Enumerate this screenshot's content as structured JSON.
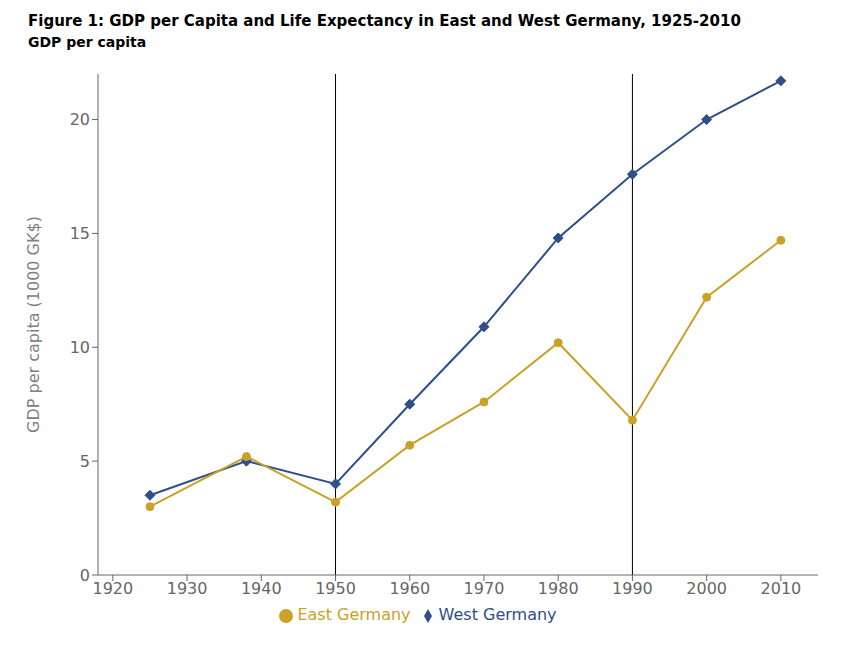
{
  "chart_data": {
    "type": "line",
    "title": "Figure 1: GDP per Capita and Life Expectancy in East and West Germany, 1925-2010",
    "subtitle": "GDP per capita",
    "ylabel": "GDP per capita (1000 GK$)",
    "x": [
      1925,
      1938,
      1950,
      1960,
      1970,
      1980,
      1990,
      2000,
      2010
    ],
    "series": [
      {
        "name": "West Germany",
        "color": "#2e4e8c",
        "marker": "diamond",
        "values": [
          3.5,
          5.0,
          4.0,
          7.5,
          10.9,
          14.8,
          17.6,
          20.0,
          21.7
        ]
      },
      {
        "name": "East Germany",
        "color": "#c9a227",
        "marker": "circle",
        "values": [
          3.0,
          5.2,
          3.2,
          5.7,
          7.6,
          10.2,
          6.8,
          12.2,
          14.7
        ]
      }
    ],
    "vlines": [
      1950,
      1990
    ],
    "xlim": [
      1918,
      2015
    ],
    "ylim": [
      0,
      22
    ],
    "xticks": [
      1920,
      1930,
      1940,
      1950,
      1960,
      1970,
      1980,
      1990,
      2000,
      2010
    ],
    "yticks": [
      0,
      5,
      10,
      15,
      20
    ],
    "grid": false,
    "legend": "bottom"
  }
}
